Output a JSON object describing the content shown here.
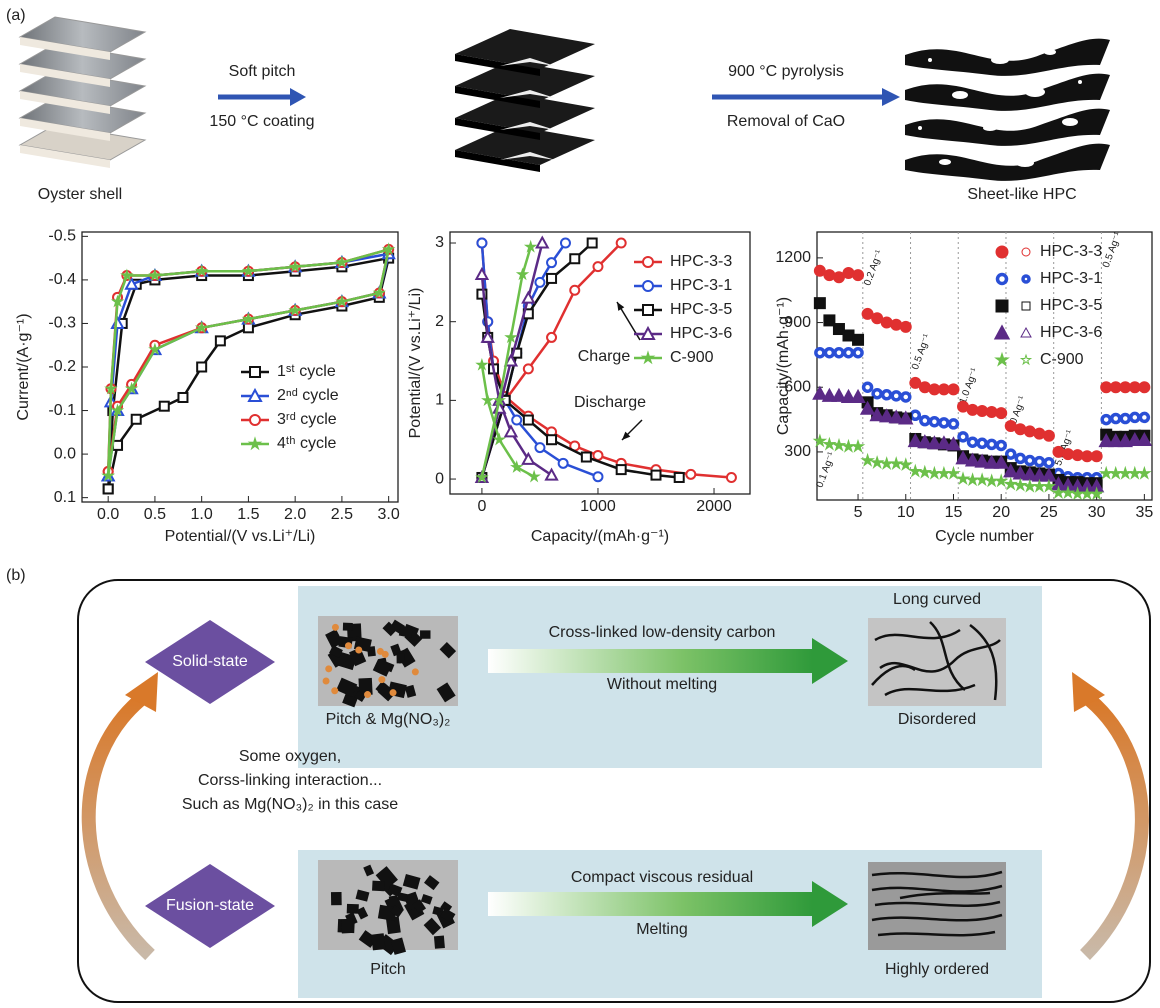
{
  "panel_a": {
    "label": "(a)",
    "start": "Oyster shell",
    "step1_top": "Soft pitch",
    "step1_bottom": "150 °C coating",
    "step2_top": "900 °C pyrolysis",
    "step2_bottom": "Removal of CaO",
    "end": "Sheet-like HPC"
  },
  "chart_data": [
    {
      "type": "line",
      "x_label": "Potential/(V vs.Li⁺/Li)",
      "y_label": "Current/(A·g⁻¹)",
      "xlim": [
        -0.28,
        3.1
      ],
      "ylim": [
        0.11,
        -0.51
      ],
      "xticks": [
        {
          "value": 0,
          "label": "0.0"
        },
        0.5,
        {
          "value": 1,
          "label": "1.0"
        },
        1.5,
        {
          "value": 2,
          "label": "2.0"
        },
        2.5,
        {
          "value": 3,
          "label": "3.0"
        }
      ],
      "yticks": [
        -0.5,
        -0.4,
        -0.3,
        -0.2,
        -0.1,
        {
          "value": 0,
          "label": "0.0"
        },
        0.1
      ],
      "series": [
        {
          "name": "1ˢᵗ cycle",
          "color": "#111111",
          "marker": "square",
          "x": [
            0.0,
            0.1,
            0.3,
            0.6,
            0.8,
            1.0,
            1.2,
            1.5,
            2.0,
            2.5,
            2.9,
            3.0,
            2.5,
            2.0,
            1.5,
            1.0,
            0.5,
            0.3,
            0.15,
            0.05,
            0.0
          ],
          "values": [
            0.08,
            -0.02,
            -0.08,
            -0.11,
            -0.13,
            -0.2,
            -0.26,
            -0.29,
            -0.32,
            -0.34,
            -0.36,
            -0.45,
            -0.43,
            -0.42,
            -0.41,
            -0.41,
            -0.4,
            -0.39,
            -0.3,
            -0.1,
            0.08
          ]
        },
        {
          "name": "2ⁿᵈ cycle",
          "color": "#2a4fd6",
          "marker": "triangle",
          "x": [
            0.0,
            0.1,
            0.25,
            0.5,
            1.0,
            1.5,
            2.0,
            2.5,
            2.9,
            3.0,
            2.5,
            2.0,
            1.5,
            1.0,
            0.5,
            0.25,
            0.1,
            0.03,
            0.0
          ],
          "values": [
            0.05,
            -0.1,
            -0.15,
            -0.24,
            -0.29,
            -0.31,
            -0.33,
            -0.35,
            -0.37,
            -0.46,
            -0.44,
            -0.43,
            -0.42,
            -0.42,
            -0.41,
            -0.39,
            -0.3,
            -0.12,
            0.05
          ]
        },
        {
          "name": "3ʳᵈ cycle",
          "color": "#e03030",
          "marker": "circle",
          "x": [
            0.0,
            0.1,
            0.25,
            0.5,
            1.0,
            1.5,
            2.0,
            2.5,
            2.9,
            3.0,
            2.5,
            2.0,
            1.5,
            1.0,
            0.5,
            0.2,
            0.1,
            0.03,
            0.0
          ],
          "values": [
            0.04,
            -0.11,
            -0.16,
            -0.25,
            -0.29,
            -0.31,
            -0.33,
            -0.35,
            -0.37,
            -0.47,
            -0.44,
            -0.43,
            -0.42,
            -0.42,
            -0.41,
            -0.41,
            -0.36,
            -0.15,
            0.04
          ]
        },
        {
          "name": "4ᵗʰ cycle",
          "color": "#6cc04a",
          "marker": "star",
          "x": [
            0.0,
            0.1,
            0.25,
            0.5,
            1.0,
            1.5,
            2.0,
            2.5,
            2.9,
            3.0,
            2.5,
            2.0,
            1.5,
            1.0,
            0.5,
            0.2,
            0.1,
            0.03,
            0.0
          ],
          "values": [
            0.05,
            -0.1,
            -0.15,
            -0.24,
            -0.29,
            -0.31,
            -0.33,
            -0.35,
            -0.37,
            -0.47,
            -0.44,
            -0.43,
            -0.42,
            -0.42,
            -0.41,
            -0.41,
            -0.35,
            -0.15,
            0.05
          ]
        }
      ]
    },
    {
      "type": "line",
      "x_label": "Capacity/(mAh·g⁻¹)",
      "y_label": "Potential/(V vs.Li⁺/Li)",
      "xlim": [
        -275,
        2310
      ],
      "ylim": [
        -0.19,
        3.14
      ],
      "xticks": [
        0,
        1000,
        2000
      ],
      "yticks": [
        0,
        1,
        2,
        3
      ],
      "annotations": [
        "Charge",
        "Discharge"
      ],
      "series": [
        {
          "name": "HPC-3-3",
          "color": "#e03030",
          "marker": "circle",
          "discharge": {
            "x": [
              0,
              50,
              100,
              200,
              400,
              600,
              800,
              1000,
              1200,
              1500,
              1800,
              2150
            ],
            "values": [
              3.0,
              2.0,
              1.5,
              1.05,
              0.8,
              0.6,
              0.42,
              0.3,
              0.2,
              0.12,
              0.06,
              0.02
            ]
          },
          "charge": {
            "x": [
              0,
              200,
              400,
              600,
              800,
              1000,
              1200
            ],
            "values": [
              0.02,
              1.0,
              1.4,
              1.8,
              2.4,
              2.7,
              3.0
            ]
          }
        },
        {
          "name": "HPC-3-1",
          "color": "#2a4fd6",
          "marker": "circle",
          "discharge": {
            "x": [
              0,
              50,
              100,
              200,
              300,
              500,
              700,
              1000
            ],
            "values": [
              3.0,
              2.0,
              1.4,
              1.0,
              0.75,
              0.4,
              0.2,
              0.03
            ]
          },
          "charge": {
            "x": [
              0,
              200,
              300,
              400,
              500,
              600,
              720
            ],
            "values": [
              0.02,
              1.0,
              1.6,
              2.2,
              2.5,
              2.75,
              3.0
            ]
          }
        },
        {
          "name": "HPC-3-5",
          "color": "#111111",
          "marker": "square",
          "discharge": {
            "x": [
              0,
              50,
              100,
              200,
              400,
              600,
              900,
              1200,
              1500,
              1700
            ],
            "values": [
              2.35,
              1.8,
              1.4,
              1.0,
              0.75,
              0.5,
              0.28,
              0.12,
              0.05,
              0.02
            ]
          },
          "charge": {
            "x": [
              0,
              200,
              300,
              400,
              600,
              800,
              950
            ],
            "values": [
              0.02,
              1.0,
              1.6,
              2.1,
              2.55,
              2.8,
              3.0
            ]
          }
        },
        {
          "name": "HPC-3-6",
          "color": "#5b2a86",
          "marker": "triangle",
          "discharge": {
            "x": [
              0,
              50,
              150,
              250,
              400,
              600
            ],
            "values": [
              2.6,
              1.8,
              1.0,
              0.6,
              0.25,
              0.05
            ]
          },
          "charge": {
            "x": [
              0,
              150,
              250,
              400,
              520
            ],
            "values": [
              0.02,
              0.9,
              1.5,
              2.3,
              3.0
            ]
          }
        },
        {
          "name": "C-900",
          "color": "#6cc04a",
          "marker": "star",
          "discharge": {
            "x": [
              0,
              50,
              150,
              300,
              450
            ],
            "values": [
              1.45,
              1.0,
              0.5,
              0.15,
              0.03
            ]
          },
          "charge": {
            "x": [
              0,
              150,
              250,
              350,
              420
            ],
            "values": [
              0.02,
              1.0,
              1.8,
              2.6,
              2.95
            ]
          }
        }
      ]
    },
    {
      "type": "scatter",
      "x_label": "Cycle number",
      "y_label": "Capacity/(mAh·g⁻¹)",
      "xlim": [
        0.7,
        35.8
      ],
      "ylim": [
        77,
        1320
      ],
      "xticks": [
        5,
        10,
        15,
        20,
        25,
        30,
        35
      ],
      "yticks": [
        300,
        600,
        900,
        1200
      ],
      "rate_labels": [
        "0.1 Ag⁻¹",
        "0.2 Ag⁻¹",
        "0.5 Ag⁻¹",
        "1.0 Ag⁻¹",
        "2.0 Ag⁻¹",
        "5.0 Ag⁻¹",
        "0.5 Ag⁻¹"
      ],
      "x": [
        1,
        2,
        3,
        4,
        5,
        6,
        7,
        8,
        9,
        10,
        11,
        12,
        13,
        14,
        15,
        16,
        17,
        18,
        19,
        20,
        21,
        22,
        23,
        24,
        25,
        26,
        27,
        28,
        29,
        30,
        31,
        32,
        33,
        34,
        35
      ],
      "series": [
        {
          "name": "HPC-3-3",
          "color": "#e03030",
          "marker": "circle",
          "values": [
            1140,
            1120,
            1110,
            1130,
            1120,
            940,
            920,
            900,
            890,
            880,
            620,
            600,
            590,
            590,
            590,
            510,
            495,
            490,
            485,
            480,
            420,
            405,
            395,
            385,
            375,
            300,
            290,
            285,
            280,
            280,
            600,
            600,
            600,
            600,
            600
          ]
        },
        {
          "name": "HPC-3-1",
          "color": "#2a4fd6",
          "marker": "ring",
          "values": [
            760,
            760,
            760,
            760,
            760,
            600,
            570,
            565,
            560,
            555,
            470,
            445,
            440,
            435,
            430,
            370,
            345,
            340,
            335,
            330,
            290,
            270,
            260,
            255,
            250,
            200,
            185,
            180,
            180,
            180,
            450,
            455,
            455,
            460,
            460
          ]
        },
        {
          "name": "HPC-3-5",
          "color": "#111111",
          "marker": "square",
          "values": [
            990,
            910,
            870,
            840,
            820,
            530,
            480,
            470,
            460,
            455,
            360,
            345,
            340,
            335,
            330,
            280,
            265,
            260,
            255,
            255,
            225,
            210,
            205,
            200,
            195,
            170,
            160,
            160,
            155,
            155,
            380,
            370,
            370,
            375,
            375
          ]
        },
        {
          "name": "HPC-3-6",
          "color": "#5b2a86",
          "marker": "triangle",
          "values": [
            570,
            560,
            560,
            555,
            555,
            500,
            470,
            465,
            460,
            455,
            350,
            345,
            340,
            340,
            335,
            270,
            260,
            255,
            250,
            250,
            210,
            200,
            195,
            190,
            190,
            150,
            145,
            140,
            140,
            140,
            350,
            350,
            350,
            355,
            355
          ]
        },
        {
          "name": "C-900",
          "color": "#6cc04a",
          "marker": "star",
          "values": [
            350,
            335,
            330,
            325,
            325,
            260,
            250,
            245,
            245,
            240,
            210,
            205,
            200,
            200,
            200,
            175,
            170,
            170,
            165,
            165,
            150,
            145,
            140,
            140,
            140,
            110,
            110,
            105,
            105,
            105,
            200,
            200,
            200,
            200,
            200
          ]
        }
      ]
    }
  ],
  "panel_b": {
    "label": "(b)",
    "solid": "Solid-state",
    "fusion": "Fusion-state",
    "solid_top": "Cross-linked low-density carbon",
    "solid_bottom": "Without melting",
    "solid_product_top": "Long curved",
    "solid_product_bottom": "Disordered",
    "solid_precursor": "Pitch & Mg(NO₃)₂",
    "note": [
      "Some oxygen,",
      "Corss-linking interaction...",
      "Such as Mg(NO₃)₂ in this case"
    ],
    "fusion_top": "Compact viscous residual",
    "fusion_bottom": "Melting",
    "fusion_precursor": "Pitch",
    "fusion_product": "Highly ordered"
  }
}
